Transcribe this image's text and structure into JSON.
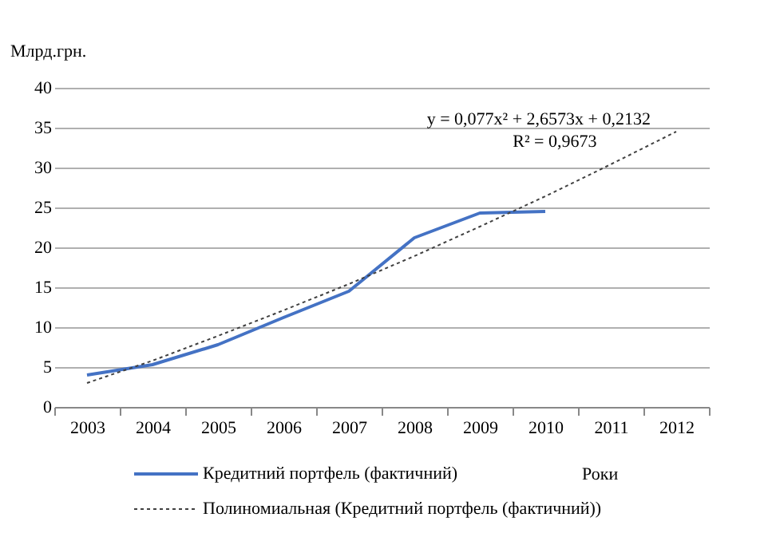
{
  "chart_data": {
    "type": "line",
    "ylabel": "Млрд.грн.",
    "xlabel": "Роки",
    "categories": [
      "2003",
      "2004",
      "2005",
      "2006",
      "2007",
      "2008",
      "2009",
      "2010",
      "2011",
      "2012"
    ],
    "series": [
      {
        "name": "Кредитний портфель (фактичний)",
        "line_style": "solid",
        "color": "#4472c4",
        "values": [
          4.0,
          5.3,
          7.8,
          11.2,
          14.5,
          21.2,
          24.3,
          24.5,
          null,
          null
        ]
      },
      {
        "name": "Полиномиальная (Кредитний портфель (фактичний))",
        "line_style": "dotted",
        "color": "#404040",
        "values": [
          3.0,
          5.8,
          8.9,
          12.1,
          15.4,
          18.9,
          22.6,
          26.4,
          30.4,
          34.5
        ]
      }
    ],
    "ylim": [
      0,
      40
    ],
    "yticks": [
      0,
      5,
      10,
      15,
      20,
      25,
      30,
      35,
      40
    ],
    "grid": "y",
    "legend": "bottom",
    "annotations": [
      "y = 0,077x² + 2,6573x + 0,2132",
      "R² = 0,9673"
    ]
  }
}
